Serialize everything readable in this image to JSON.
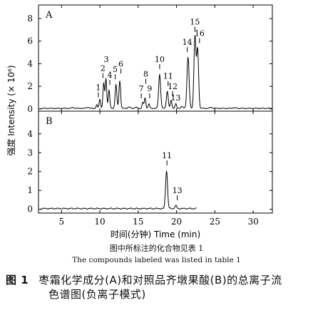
{
  "chart_data": {
    "type": "line",
    "ylabel": "强度 Intensity (× 10⁶)",
    "xlabel": "时间(分钟) Time (min)",
    "xlim": [
      2,
      32.5
    ],
    "xticks": [
      5,
      10,
      15,
      20,
      25,
      30
    ],
    "grid": false,
    "panels": [
      {
        "label": "A",
        "ylim": [
          -0.2,
          9.2
        ],
        "yticks": [
          0,
          2,
          4,
          6,
          8
        ],
        "series": {
          "peaks": [
            {
              "x": 9.6,
              "y": 0.3,
              "w": 0.09
            },
            {
              "x": 10.0,
              "y": 0.8,
              "w": 0.1
            },
            {
              "x": 10.5,
              "y": 2.2,
              "w": 0.1
            },
            {
              "x": 10.8,
              "y": 2.6,
              "w": 0.1
            },
            {
              "x": 11.2,
              "y": 1.6,
              "w": 0.1
            },
            {
              "x": 12.1,
              "y": 2.1,
              "w": 0.11
            },
            {
              "x": 12.6,
              "y": 2.4,
              "w": 0.11
            },
            {
              "x": 15.6,
              "y": 0.5,
              "w": 0.1
            },
            {
              "x": 15.9,
              "y": 0.9,
              "w": 0.1
            },
            {
              "x": 16.4,
              "y": 0.4,
              "w": 0.1
            },
            {
              "x": 17.8,
              "y": 3.0,
              "w": 0.13
            },
            {
              "x": 18.8,
              "y": 1.5,
              "w": 0.12
            },
            {
              "x": 19.3,
              "y": 0.7,
              "w": 0.1
            },
            {
              "x": 19.9,
              "y": 0.4,
              "w": 0.1
            },
            {
              "x": 21.5,
              "y": 4.5,
              "w": 0.14
            },
            {
              "x": 22.4,
              "y": 6.3,
              "w": 0.13
            },
            {
              "x": 22.75,
              "y": 5.2,
              "w": 0.13
            }
          ],
          "minor": [
            {
              "x": 6.5,
              "y": 0.08,
              "w": 0.15
            },
            {
              "x": 8.4,
              "y": 0.1,
              "w": 0.15
            },
            {
              "x": 13.8,
              "y": 0.12,
              "w": 0.15
            },
            {
              "x": 14.7,
              "y": 0.1,
              "w": 0.15
            },
            {
              "x": 20.7,
              "y": 0.15,
              "w": 0.15
            },
            {
              "x": 24.5,
              "y": 0.08,
              "w": 0.2
            },
            {
              "x": 27.5,
              "y": 0.05,
              "w": 0.2
            }
          ],
          "baseline": 0.05,
          "x_end": 32.5
        },
        "annotations": [
          {
            "text": "1",
            "x": 9.8,
            "y": 0.9,
            "tick": true
          },
          {
            "text": "2",
            "x": 10.4,
            "y": 2.6,
            "tick": true
          },
          {
            "text": "3",
            "x": 10.85,
            "y": 3.9,
            "tick": false
          },
          {
            "text": "4",
            "x": 11.3,
            "y": 2.0,
            "tick": true
          },
          {
            "text": "5",
            "x": 12.0,
            "y": 2.5,
            "tick": true
          },
          {
            "text": "6",
            "x": 12.75,
            "y": 3.0,
            "tick": true
          },
          {
            "text": "7",
            "x": 15.4,
            "y": 0.8,
            "tick": true
          },
          {
            "text": "8",
            "x": 16.0,
            "y": 2.1,
            "tick": true
          },
          {
            "text": "9",
            "x": 16.5,
            "y": 0.8,
            "tick": true
          },
          {
            "text": "10",
            "x": 17.8,
            "y": 3.4,
            "tick": true
          },
          {
            "text": "11",
            "x": 18.9,
            "y": 1.9,
            "tick": true
          },
          {
            "text": "12",
            "x": 19.5,
            "y": 1.0,
            "tick": true
          },
          {
            "text": "13",
            "x": 19.9,
            "y": 0.5,
            "tick": false
          },
          {
            "text": "14",
            "x": 21.4,
            "y": 4.9,
            "tick": true
          },
          {
            "text": "15",
            "x": 22.4,
            "y": 6.7,
            "tick": true
          },
          {
            "text": "16",
            "x": 23.0,
            "y": 5.7,
            "tick": true
          }
        ]
      },
      {
        "label": "B",
        "ylim": [
          -0.2,
          5.2
        ],
        "yticks": [
          0,
          1,
          2,
          3,
          4
        ],
        "series": {
          "peaks": [
            {
              "x": 18.7,
              "y": 2.0,
              "w": 0.13
            },
            {
              "x": 19.9,
              "y": 0.15,
              "w": 0.12
            }
          ],
          "minor": [],
          "baseline": 0.04,
          "x_end": 22.6
        },
        "annotations": [
          {
            "text": "11",
            "x": 18.75,
            "y": 2.25,
            "tick": true
          },
          {
            "text": "13",
            "x": 20.1,
            "y": 0.4,
            "tick": true
          }
        ]
      }
    ]
  },
  "captions": {
    "cn_sub": "图中所标注的化合物见表 1",
    "en_sub": "The compounds labeled was listed in table 1",
    "fig_num": "图 1",
    "fig_title_line1": "枣霜化学成分(A)和对照品齐墩果酸(B)的总离子流",
    "fig_title_line2": "色谱图(负离子模式)"
  }
}
